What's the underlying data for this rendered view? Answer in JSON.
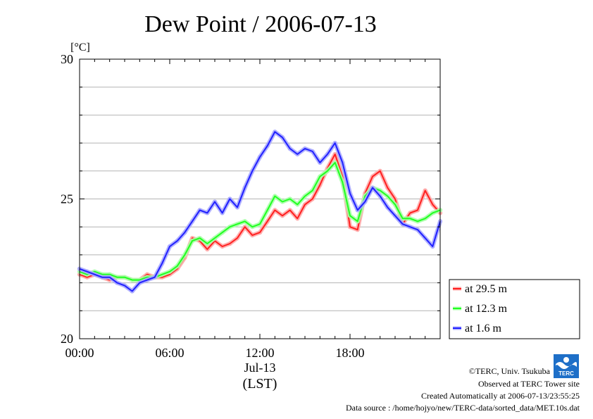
{
  "chart_data": {
    "type": "line",
    "title": "Dew Point / 2006-07-13",
    "ylabel": "[°C]",
    "xlabel": "(LST)",
    "date_label": "Jul-13",
    "ylim": [
      20,
      30
    ],
    "xlim": [
      0,
      24
    ],
    "y_ticks": [
      "20",
      "25",
      "30"
    ],
    "y_tick_values": [
      20,
      25,
      30
    ],
    "x_ticks": [
      "00:00",
      "06:00",
      "12:00",
      "18:00"
    ],
    "x_tick_values": [
      0,
      6,
      12,
      18
    ],
    "grid": true,
    "legend_position": "bottom-right",
    "series": [
      {
        "name": "at 29.5 m",
        "color": "#ff2020",
        "x": [
          0,
          0.5,
          1,
          1.5,
          2,
          2.5,
          3,
          3.5,
          4,
          4.5,
          5,
          5.5,
          6,
          6.5,
          7,
          7.5,
          8,
          8.5,
          9,
          9.5,
          10,
          10.5,
          11,
          11.5,
          12,
          12.5,
          13,
          13.5,
          14,
          14.5,
          15,
          15.5,
          16,
          16.5,
          17,
          17.5,
          18,
          18.5,
          19,
          19.5,
          20,
          20.5,
          21,
          21.5,
          22,
          22.5,
          23,
          23.5,
          24
        ],
        "values": [
          22.3,
          22.2,
          22.3,
          22.2,
          22.1,
          22.2,
          22.2,
          22.1,
          22.1,
          22.3,
          22.2,
          22.2,
          22.3,
          22.5,
          22.9,
          23.6,
          23.5,
          23.2,
          23.5,
          23.3,
          23.4,
          23.6,
          24.0,
          23.7,
          23.8,
          24.2,
          24.6,
          24.4,
          24.6,
          24.3,
          24.8,
          25.0,
          25.5,
          26.1,
          26.6,
          25.8,
          24.0,
          23.9,
          25.2,
          25.8,
          26.0,
          25.4,
          25.0,
          24.1,
          24.5,
          24.6,
          25.3,
          24.8,
          24.5
        ]
      },
      {
        "name": "at 12.3 m",
        "color": "#20ff20",
        "x": [
          0,
          0.5,
          1,
          1.5,
          2,
          2.5,
          3,
          3.5,
          4,
          4.5,
          5,
          5.5,
          6,
          6.5,
          7,
          7.5,
          8,
          8.5,
          9,
          9.5,
          10,
          10.5,
          11,
          11.5,
          12,
          12.5,
          13,
          13.5,
          14,
          14.5,
          15,
          15.5,
          16,
          16.5,
          17,
          17.5,
          18,
          18.5,
          19,
          19.5,
          20,
          20.5,
          21,
          21.5,
          22,
          22.5,
          23,
          23.5,
          24
        ],
        "values": [
          22.4,
          22.3,
          22.4,
          22.3,
          22.3,
          22.2,
          22.2,
          22.1,
          22.1,
          22.2,
          22.2,
          22.3,
          22.4,
          22.6,
          23.0,
          23.5,
          23.6,
          23.4,
          23.6,
          23.8,
          24.0,
          24.1,
          24.2,
          24.0,
          24.1,
          24.6,
          25.1,
          24.9,
          25.0,
          24.8,
          25.1,
          25.3,
          25.8,
          26.0,
          26.3,
          25.6,
          24.4,
          24.2,
          25.1,
          25.4,
          25.3,
          25.1,
          24.8,
          24.3,
          24.3,
          24.2,
          24.3,
          24.5,
          24.6
        ]
      },
      {
        "name": "at 1.6 m",
        "color": "#2020ff",
        "x": [
          0,
          0.5,
          1,
          1.5,
          2,
          2.5,
          3,
          3.5,
          4,
          4.5,
          5,
          5.5,
          6,
          6.5,
          7,
          7.5,
          8,
          8.5,
          9,
          9.5,
          10,
          10.5,
          11,
          11.5,
          12,
          12.5,
          13,
          13.5,
          14,
          14.5,
          15,
          15.5,
          16,
          16.5,
          17,
          17.5,
          18,
          18.5,
          19,
          19.5,
          20,
          20.5,
          21,
          21.5,
          22,
          22.5,
          23,
          23.5,
          24
        ],
        "values": [
          22.5,
          22.4,
          22.3,
          22.2,
          22.2,
          22.0,
          21.9,
          21.7,
          22.0,
          22.1,
          22.2,
          22.7,
          23.3,
          23.5,
          23.8,
          24.2,
          24.6,
          24.5,
          24.9,
          24.5,
          25.0,
          24.7,
          25.4,
          26.0,
          26.5,
          26.9,
          27.4,
          27.2,
          26.8,
          26.6,
          26.8,
          26.7,
          26.3,
          26.6,
          27.0,
          26.3,
          25.2,
          24.6,
          24.9,
          25.4,
          25.1,
          24.7,
          24.4,
          24.1,
          24.0,
          23.9,
          23.6,
          23.3,
          24.2
        ]
      }
    ]
  },
  "credits": {
    "copyright": "©TERC, Univ. Tsukuba",
    "observed": "Observed at TERC Tower site",
    "created": "Created Automatically at 2006-07-13/23:55:25",
    "source": "Data source : /home/hojyo/new/TERC-data/sorted_data/MET.10s.dat",
    "logo_text": "TERC"
  }
}
